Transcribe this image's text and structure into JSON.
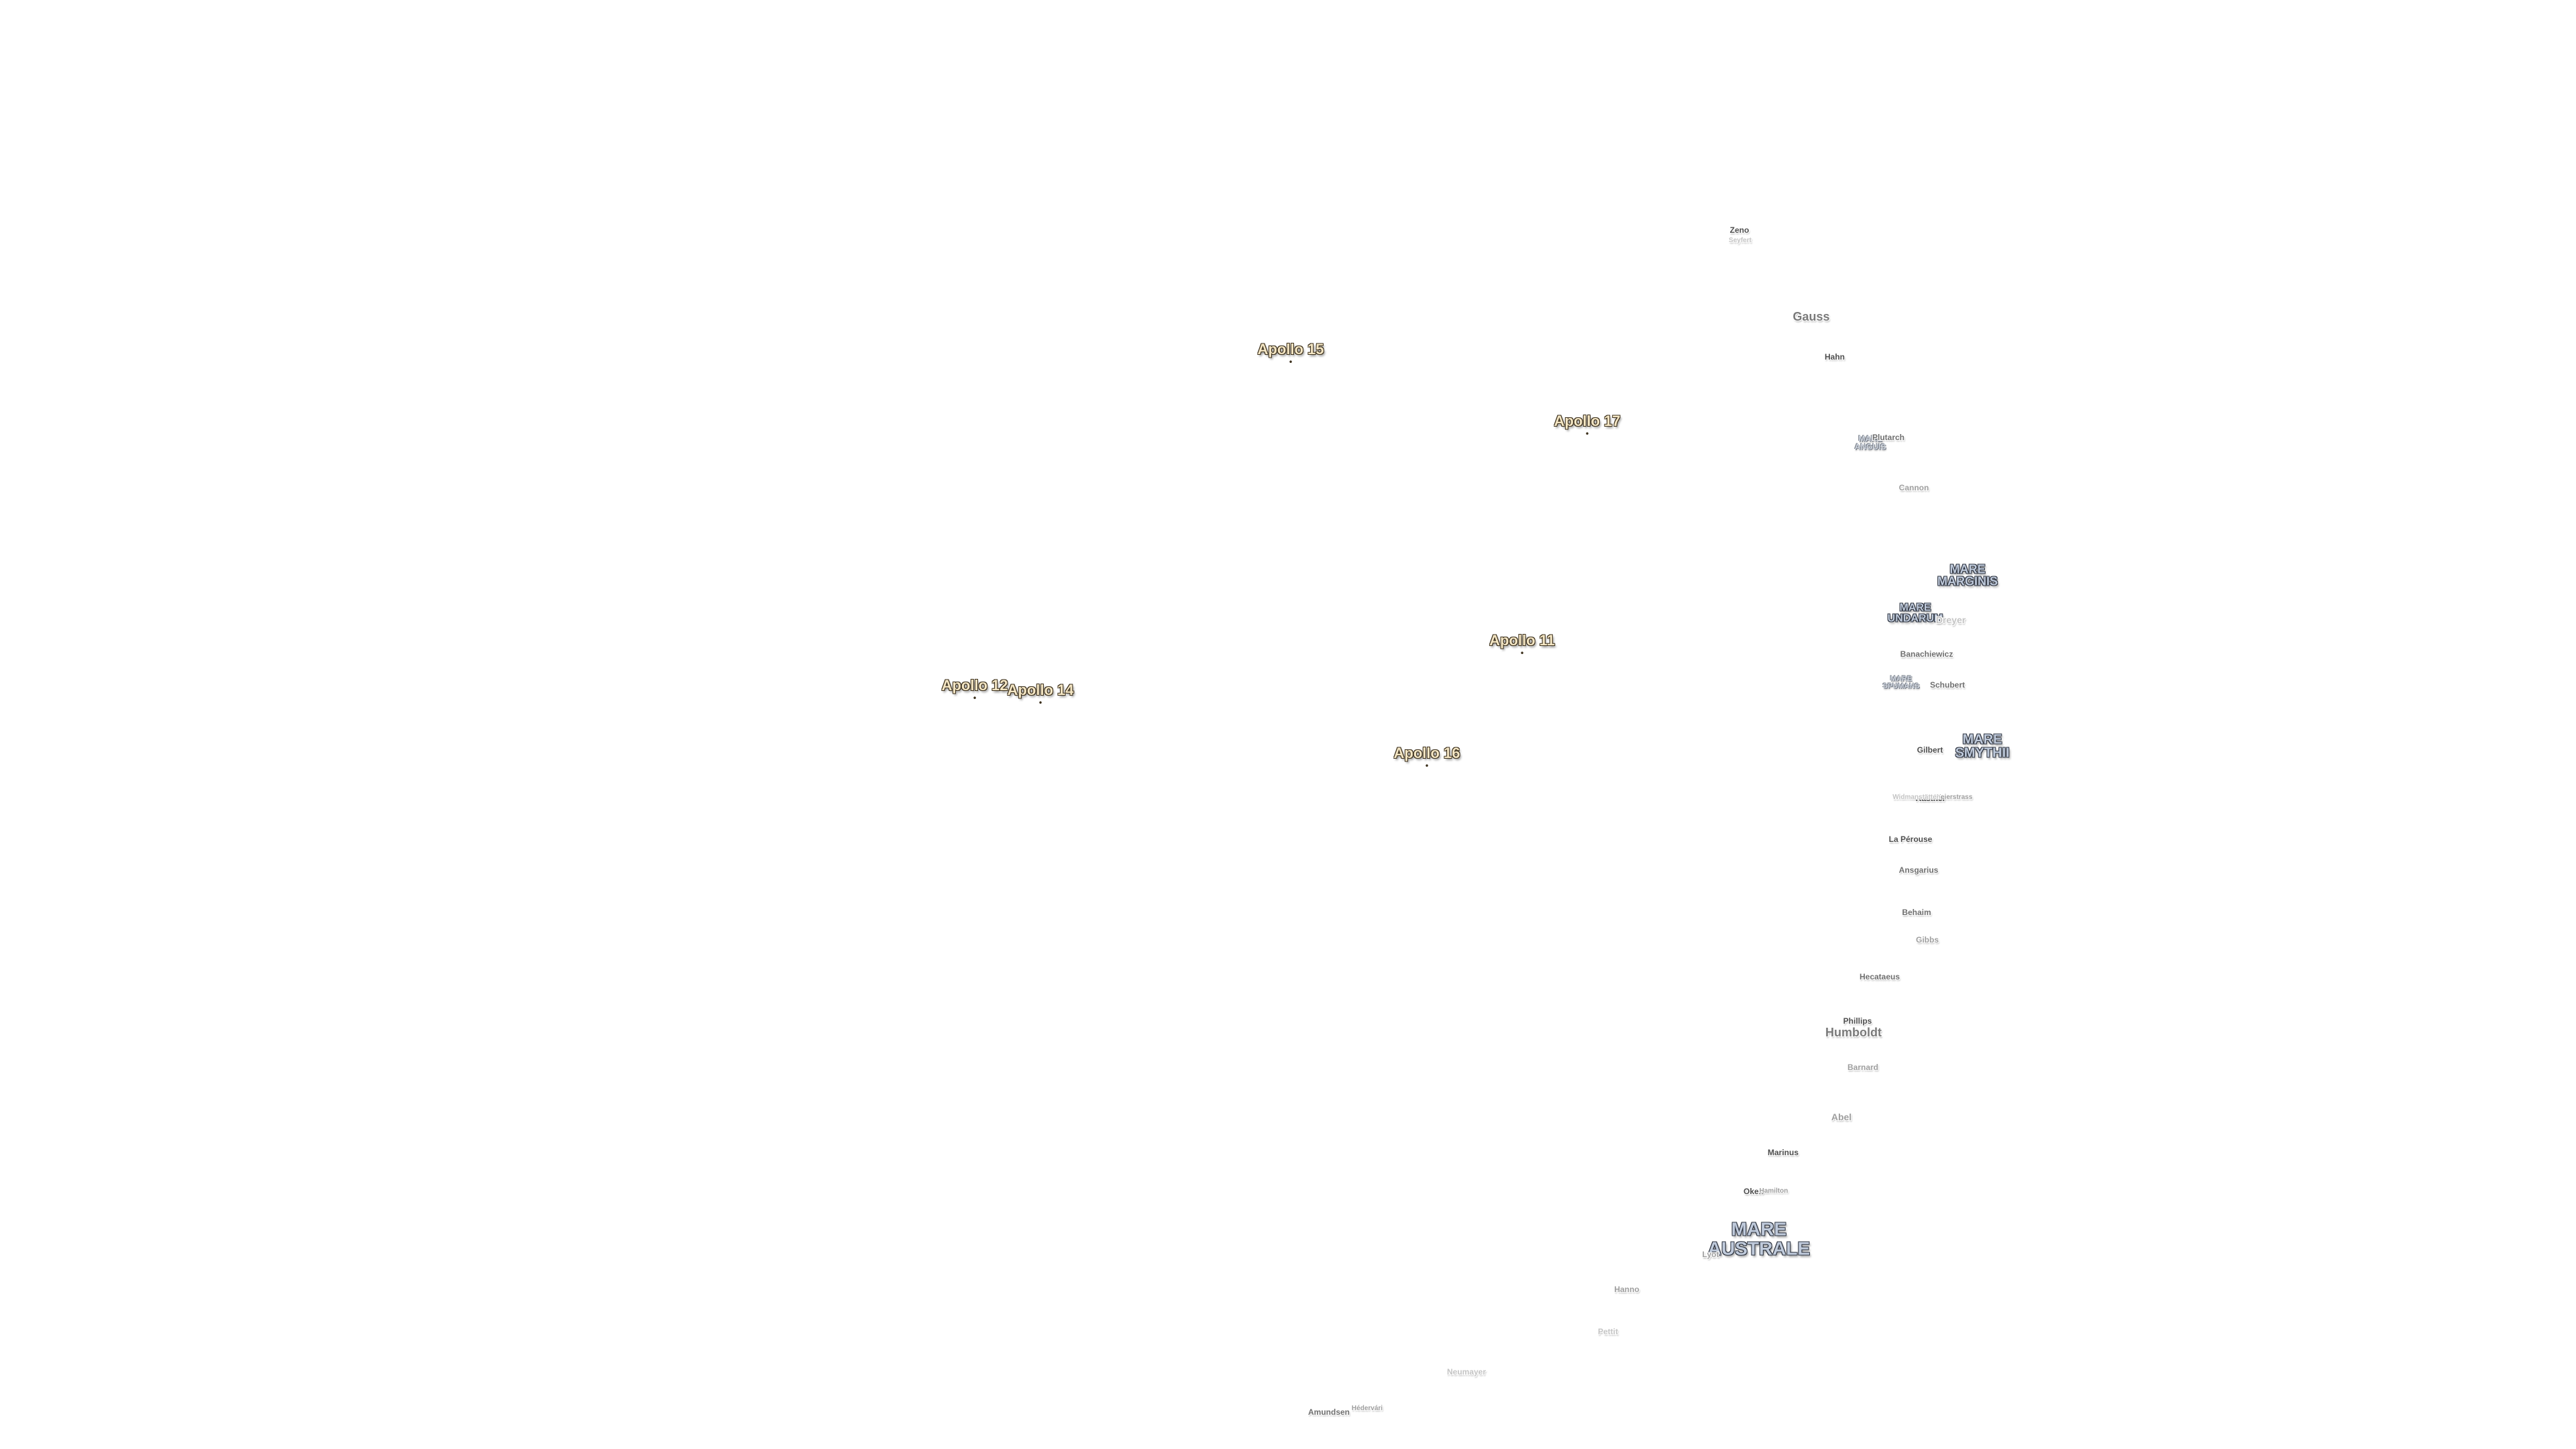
{
  "apollo_sites": [
    {
      "label": "Apollo 15"
    },
    {
      "label": "Apollo 17"
    },
    {
      "label": "Apollo 11"
    },
    {
      "label": "Apollo 12"
    },
    {
      "label": "Apollo 14"
    },
    {
      "label": "Apollo 16"
    }
  ],
  "maria": [
    {
      "label": "MARE\nMARGINIS"
    },
    {
      "label": "MARE\nUNDARUM"
    },
    {
      "label": "MARE\nSMYTHII"
    },
    {
      "label": "MARE\nAUSTRALE"
    },
    {
      "label": "MARE\nANGUIS"
    },
    {
      "label": "MARE\nSPUMANS"
    }
  ],
  "craters": [
    {
      "label": "Zeno"
    },
    {
      "label": "Seyfert"
    },
    {
      "label": "Gauss"
    },
    {
      "label": "Hahn"
    },
    {
      "label": "Plutarch"
    },
    {
      "label": "Cannon"
    },
    {
      "label": "Dreyer"
    },
    {
      "label": "Banachiewicz"
    },
    {
      "label": "Schubert"
    },
    {
      "label": "Gilbert"
    },
    {
      "label": "Kästner"
    },
    {
      "label": "Weierstrass"
    },
    {
      "label": "Widmanstätten"
    },
    {
      "label": "La Pérouse"
    },
    {
      "label": "Ansgarius"
    },
    {
      "label": "Behaim"
    },
    {
      "label": "Gibbs"
    },
    {
      "label": "Hecataeus"
    },
    {
      "label": "Phillips"
    },
    {
      "label": "Humboldt"
    },
    {
      "label": "Barnard"
    },
    {
      "label": "Abel"
    },
    {
      "label": "Marinus"
    },
    {
      "label": "Oken"
    },
    {
      "label": "Hamilton"
    },
    {
      "label": "Lyot"
    },
    {
      "label": "Hanno"
    },
    {
      "label": "Pettit"
    },
    {
      "label": "Neumayer"
    },
    {
      "label": "Amundsen"
    },
    {
      "label": "Hédervári"
    }
  ]
}
